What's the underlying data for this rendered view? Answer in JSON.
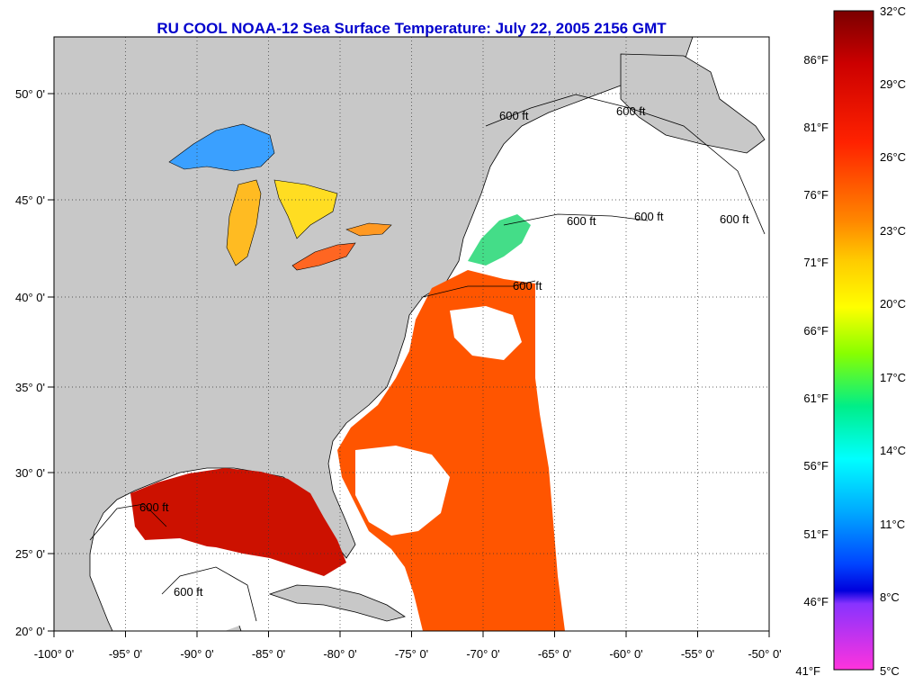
{
  "title": "RU COOL  NOAA-12  Sea Surface Temperature:  July 22, 2005 2156 GMT",
  "map": {
    "lon_labels": [
      "-100° 0'",
      "-95° 0'",
      "-90° 0'",
      "-85° 0'",
      "-80° 0'",
      "-75° 0'",
      "-70° 0'",
      "-65° 0'",
      "-60° 0'",
      "-55° 0'",
      "-50° 0'"
    ],
    "lat_labels": [
      "50° 0'",
      "45° 0'",
      "40° 0'",
      "35° 0'",
      "30° 0'",
      "25° 0'",
      "20° 0'"
    ],
    "contour_labels": [
      "600 ft",
      "600 ft",
      "600 ft",
      "600 ft",
      "600 ft",
      "600 ft",
      "600 ft",
      "600 ft"
    ],
    "colors": {
      "land": "#c8c8c8",
      "cloud": "#ffffff",
      "border": "#000000"
    }
  },
  "colorbar": {
    "celsius": [
      "32°C",
      "29°C",
      "26°C",
      "23°C",
      "20°C",
      "17°C",
      "14°C",
      "11°C",
      "8°C",
      "5°C"
    ],
    "fahrenheit": [
      "86°F",
      "81°F",
      "76°F",
      "71°F",
      "66°F",
      "61°F",
      "56°F",
      "51°F",
      "46°F",
      "41°F"
    ],
    "scale_colors": [
      "#7a0000",
      "#cc0000",
      "#ff2200",
      "#ff7700",
      "#ffcc00",
      "#ffff00",
      "#88ff00",
      "#00dd88",
      "#00ffff",
      "#00aaff",
      "#0044ff",
      "#0000dd",
      "#8833ff",
      "#ff33dd"
    ]
  }
}
